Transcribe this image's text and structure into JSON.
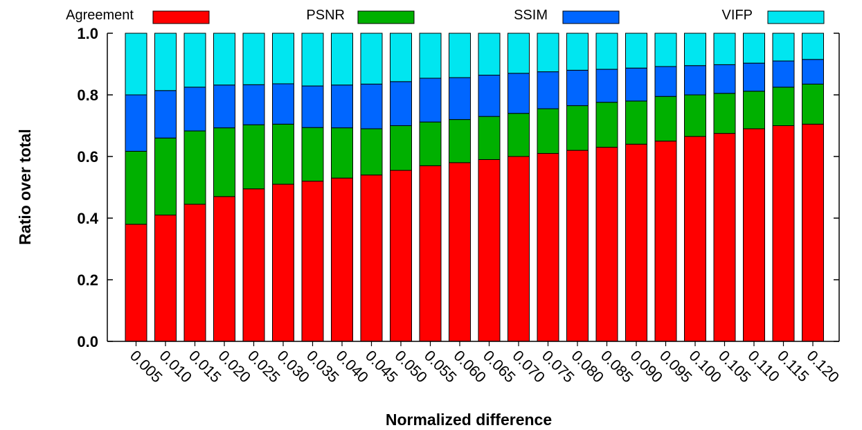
{
  "chart_data": {
    "type": "bar",
    "stacked": true,
    "normalized": true,
    "categories": [
      "0.005",
      "0.010",
      "0.015",
      "0.020",
      "0.025",
      "0.030",
      "0.035",
      "0.040",
      "0.045",
      "0.050",
      "0.055",
      "0.060",
      "0.065",
      "0.070",
      "0.075",
      "0.080",
      "0.085",
      "0.090",
      "0.095",
      "0.100",
      "0.105",
      "0.110",
      "0.115",
      "0.120"
    ],
    "series": [
      {
        "name": "Agreement",
        "color": "#ff0000",
        "values": [
          0.38,
          0.41,
          0.445,
          0.47,
          0.495,
          0.51,
          0.52,
          0.53,
          0.54,
          0.555,
          0.57,
          0.58,
          0.59,
          0.6,
          0.61,
          0.62,
          0.63,
          0.64,
          0.65,
          0.665,
          0.675,
          0.69,
          0.7,
          0.705
        ]
      },
      {
        "name": "PSNR",
        "color": "#00b000",
        "values": [
          0.237,
          0.25,
          0.238,
          0.223,
          0.208,
          0.195,
          0.174,
          0.163,
          0.15,
          0.145,
          0.142,
          0.14,
          0.14,
          0.14,
          0.145,
          0.145,
          0.146,
          0.14,
          0.145,
          0.135,
          0.13,
          0.122,
          0.125,
          0.13
        ]
      },
      {
        "name": "SSIM",
        "color": "#0066ff",
        "values": [
          0.183,
          0.154,
          0.142,
          0.139,
          0.13,
          0.131,
          0.135,
          0.139,
          0.145,
          0.143,
          0.142,
          0.136,
          0.134,
          0.13,
          0.12,
          0.115,
          0.107,
          0.107,
          0.097,
          0.095,
          0.093,
          0.091,
          0.085,
          0.08
        ]
      },
      {
        "name": "VIFP",
        "color": "#00e6f0",
        "values": [
          0.2,
          0.186,
          0.175,
          0.168,
          0.167,
          0.164,
          0.171,
          0.168,
          0.165,
          0.157,
          0.146,
          0.144,
          0.136,
          0.13,
          0.125,
          0.12,
          0.117,
          0.113,
          0.108,
          0.105,
          0.102,
          0.097,
          0.09,
          0.085
        ]
      }
    ],
    "xlabel": "Normalized difference",
    "ylabel": "Ratio over total",
    "ylim": [
      0,
      1.0
    ],
    "yticks": [
      "0.0",
      "0.2",
      "0.4",
      "0.6",
      "0.8",
      "1.0"
    ],
    "grid": false,
    "legend_position": "top"
  }
}
